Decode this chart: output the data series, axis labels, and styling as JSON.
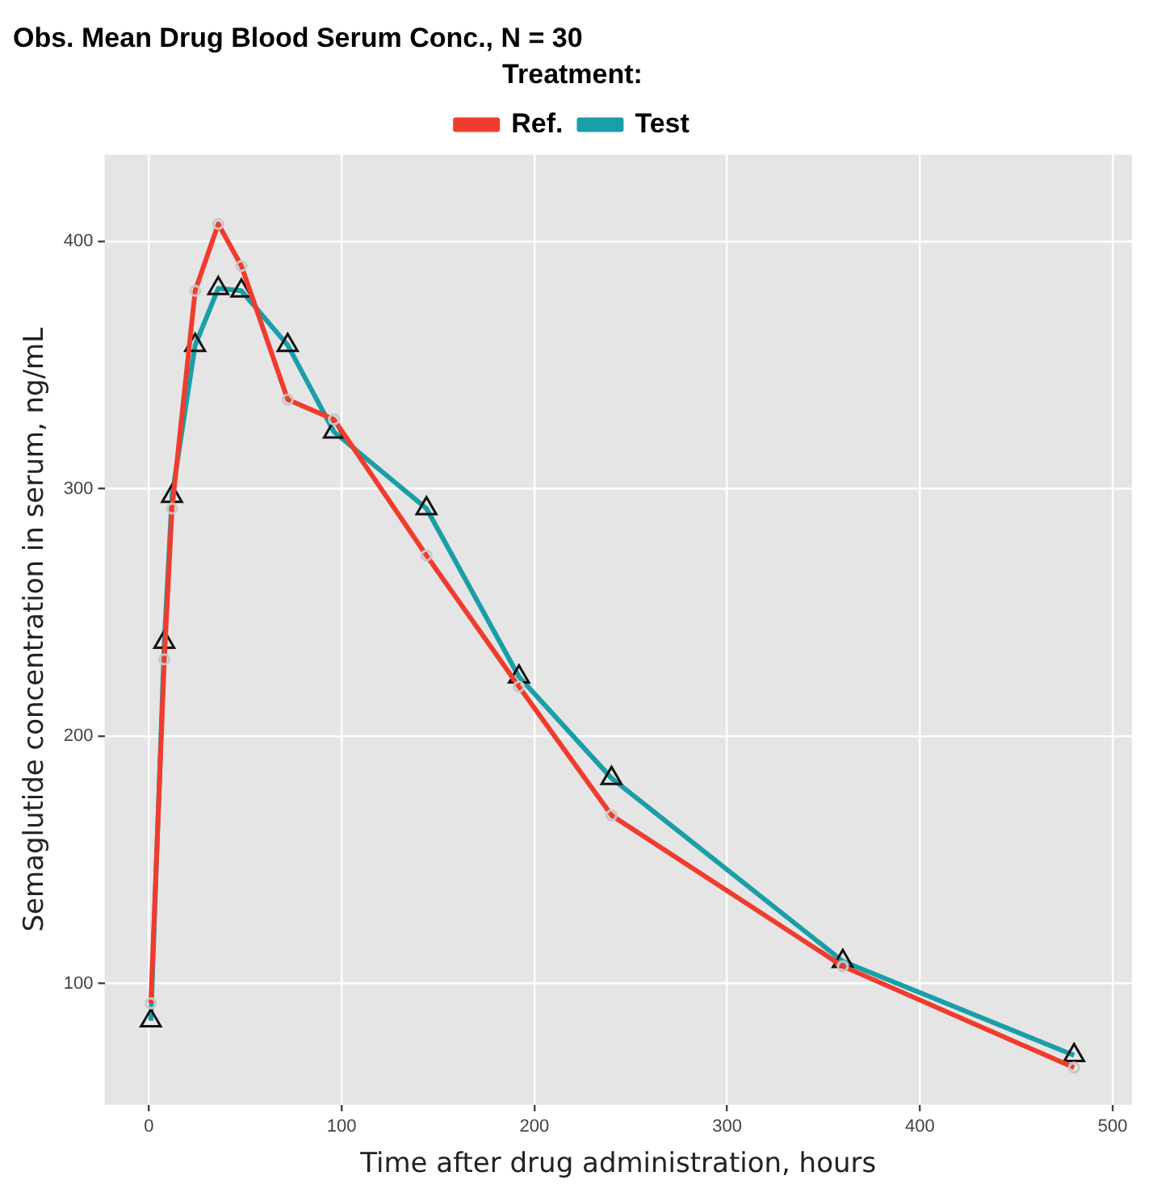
{
  "chart_data": {
    "type": "line",
    "title": "Obs. Mean Drug Blood Serum Conc., N = 30",
    "xlabel": "Time after drug administration, hours",
    "ylabel": "Semaglutide concentration in serum, ng/mL",
    "legend_title": "Treatment:",
    "legend": "top",
    "x": [
      1,
      8,
      12,
      24,
      36,
      48,
      72,
      96,
      144,
      192,
      240,
      360,
      480
    ],
    "series": [
      {
        "name": "Ref.",
        "color": "#f03c2e",
        "marker": "circle",
        "values": [
          92,
          231,
          292,
          380,
          407,
          390,
          336,
          328,
          273,
          220,
          168,
          107,
          66
        ]
      },
      {
        "name": "Test",
        "color": "#1a9ea8",
        "marker": "triangle",
        "values": [
          85,
          238,
          297,
          358,
          381,
          380,
          358,
          323,
          292,
          224,
          183,
          109,
          71
        ]
      }
    ],
    "xlim": [
      -23,
      510
    ],
    "xticks": [
      0,
      100,
      200,
      300,
      400,
      500
    ],
    "ylim": [
      51,
      435
    ],
    "yticks": [
      100,
      200,
      300,
      400
    ],
    "grid": true
  }
}
